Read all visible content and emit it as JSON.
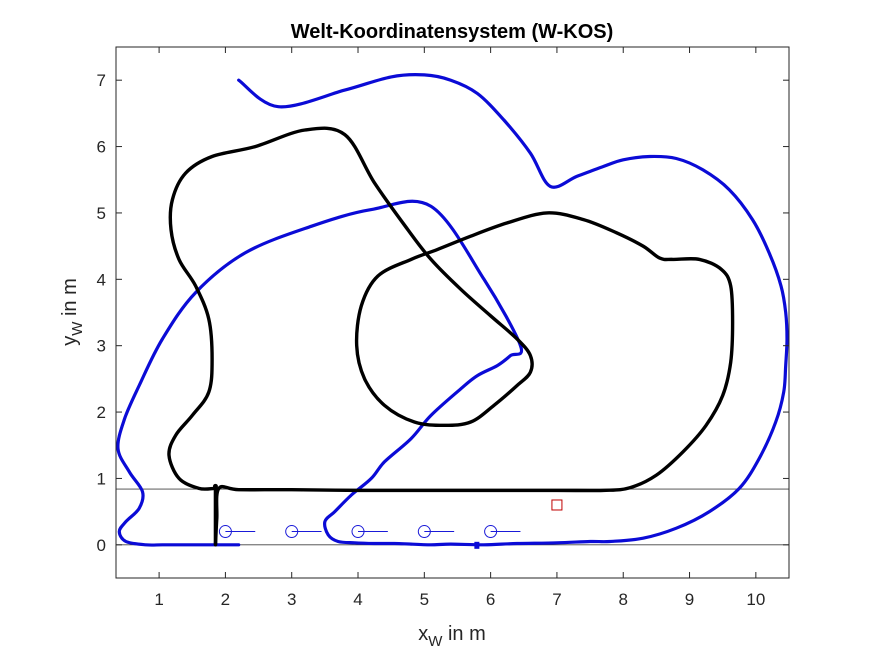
{
  "chart_data": {
    "type": "line",
    "title": "Welt-Koordinatensystem (W-KOS)",
    "xlabel": {
      "main": "x",
      "sub": "W",
      "rest": " in m"
    },
    "ylabel": {
      "main": "y",
      "sub": "W",
      "rest": " in m"
    },
    "xlim": [
      0.35,
      10.5
    ],
    "ylim": [
      -0.5,
      7.5
    ],
    "xticks": [
      1,
      2,
      3,
      4,
      5,
      6,
      7,
      8,
      9,
      10
    ],
    "yticks": [
      0,
      1,
      2,
      3,
      4,
      5,
      6,
      7
    ],
    "grid": false,
    "colors": {
      "outer": "#0b0bd6",
      "inner": "#000000",
      "marker": "#c00000",
      "vehicle": "#1a1ad8",
      "reference": "#404040"
    },
    "series": [
      {
        "role": "outer-track-blue",
        "x": [
          2.2,
          2.8,
          3.8,
          4.5,
          5.0,
          5.4,
          5.8,
          6.2,
          6.6,
          6.9,
          7.3,
          7.7,
          8.0,
          8.4,
          8.8,
          9.2,
          9.6,
          9.95,
          10.2,
          10.38,
          10.45,
          10.47,
          10.45,
          10.42,
          10.3,
          10.05,
          9.75,
          9.3,
          8.8,
          8.3,
          7.8,
          7.5,
          7.0,
          6.4,
          5.9,
          5.4,
          5.1,
          4.8,
          4.55,
          4.25,
          3.95,
          3.7,
          3.55,
          3.5,
          3.65,
          3.9,
          4.2,
          4.4,
          4.8,
          5.1,
          5.55,
          5.8,
          6.1,
          6.3,
          6.45,
          5.9,
          5.1,
          4.2,
          3.3,
          2.3,
          1.55,
          1.05,
          0.7,
          0.48,
          0.38,
          0.55,
          0.75,
          0.7,
          0.5,
          0.4,
          0.5,
          0.8,
          1.05,
          1.35,
          2.2
        ],
        "y": [
          7.0,
          6.6,
          6.85,
          7.05,
          7.08,
          7.0,
          6.8,
          6.4,
          5.9,
          5.4,
          5.55,
          5.7,
          5.8,
          5.85,
          5.82,
          5.65,
          5.35,
          4.9,
          4.4,
          3.9,
          3.5,
          3.1,
          2.7,
          2.3,
          1.85,
          1.3,
          0.85,
          0.5,
          0.25,
          0.1,
          0.05,
          0.05,
          0.03,
          0.02,
          0.0,
          0.01,
          0.0,
          0.01,
          0.02,
          0.02,
          0.03,
          0.05,
          0.15,
          0.35,
          0.5,
          0.75,
          1.0,
          1.25,
          1.6,
          1.95,
          2.35,
          2.55,
          2.7,
          2.85,
          3.0,
          4.0,
          5.1,
          5.05,
          4.8,
          4.4,
          3.8,
          3.1,
          2.4,
          1.9,
          1.45,
          1.1,
          0.8,
          0.55,
          0.35,
          0.2,
          0.05,
          0.0,
          0.0,
          0.0,
          0.0
        ]
      },
      {
        "role": "inner-track-black",
        "x": [
          1.85,
          1.87,
          1.9,
          2.2,
          3.0,
          4.0,
          5.0,
          6.0,
          7.0,
          7.7,
          8.1,
          8.5,
          8.9,
          9.25,
          9.5,
          9.62,
          9.65,
          9.62,
          9.48,
          9.15,
          8.75,
          8.55,
          8.3,
          7.9,
          7.4,
          6.85,
          6.25,
          5.7,
          5.2,
          4.8,
          4.3,
          4.05,
          3.98,
          4.1,
          4.4,
          4.85,
          5.3,
          5.7,
          6.05,
          6.4,
          6.6,
          6.6,
          6.4,
          6.0,
          5.55,
          5.1,
          4.75,
          4.25,
          3.8,
          3.2,
          2.45,
          1.8,
          1.4,
          1.2,
          1.18,
          1.3,
          1.55,
          1.75,
          1.8,
          1.75,
          1.5,
          1.25,
          1.15,
          1.3,
          1.6,
          1.83,
          1.85
        ],
        "y": [
          0.0,
          0.4,
          0.85,
          0.83,
          0.83,
          0.82,
          0.82,
          0.82,
          0.82,
          0.82,
          0.86,
          1.05,
          1.4,
          1.8,
          2.25,
          2.75,
          3.35,
          3.9,
          4.15,
          4.3,
          4.3,
          4.32,
          4.5,
          4.7,
          4.9,
          5.0,
          4.85,
          4.65,
          4.45,
          4.3,
          4.05,
          3.6,
          3.0,
          2.5,
          2.1,
          1.85,
          1.8,
          1.85,
          2.1,
          2.4,
          2.6,
          2.85,
          3.1,
          3.45,
          3.85,
          4.3,
          4.75,
          5.45,
          6.18,
          6.25,
          6.0,
          5.85,
          5.6,
          5.2,
          4.75,
          4.3,
          3.9,
          3.4,
          2.8,
          2.3,
          1.95,
          1.65,
          1.35,
          1.0,
          0.85,
          0.85,
          0.85
        ]
      }
    ],
    "reference_lines": [
      0,
      0.84
    ],
    "start_segment": {
      "x": [
        1.85,
        1.85
      ],
      "y": [
        0.0,
        0.88
      ]
    },
    "vehicles": {
      "x": [
        2,
        3,
        4,
        5,
        6
      ],
      "y": 0.2,
      "heading_length": 0.45
    },
    "marker": {
      "x": 7.0,
      "y": 0.6
    }
  }
}
